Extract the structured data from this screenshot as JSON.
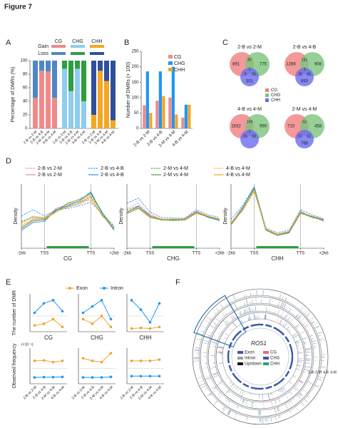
{
  "title": "Figure 7",
  "panel_labels": [
    "A",
    "B",
    "C",
    "D",
    "E",
    "F"
  ],
  "chart_data": [
    {
      "type": "stacked-bar",
      "ylabel": "Percentage of DMRs (%)",
      "ylim": [
        0,
        100
      ],
      "yticks": [
        0,
        20,
        40,
        60,
        80,
        100
      ],
      "legend_rows": [
        "Gain",
        "Loss"
      ],
      "categories": [
        "2-B vs 2-M",
        "2-B vs 4-B",
        "2-M vs 4-M",
        "4-B vs 4-M"
      ],
      "groups": [
        {
          "name": "CG",
          "series": [
            {
              "color": "#f08a8a",
              "values": [
                45,
                85,
                84,
                45
              ]
            },
            {
              "color": "#4f86c6",
              "values": [
                55,
                15,
                16,
                55
              ]
            }
          ]
        },
        {
          "name": "CHG",
          "series": [
            {
              "color": "#8ecdf0",
              "values": [
                88,
                55,
                88,
                40
              ]
            },
            {
              "color": "#2e9e3e",
              "values": [
                12,
                45,
                12,
                60
              ]
            }
          ]
        },
        {
          "name": "CHH",
          "series": [
            {
              "color": "#f5a623",
              "values": [
                20,
                85,
                70,
                12
              ]
            },
            {
              "color": "#2f4fa0",
              "values": [
                80,
                15,
                30,
                88
              ]
            }
          ]
        }
      ]
    },
    {
      "type": "bar",
      "ylabel": "Number of DMRs (× 100)",
      "ylim": [
        0,
        250
      ],
      "yticks": [
        0,
        50,
        100,
        150,
        200,
        250
      ],
      "categories": [
        "2-B vs 2-M",
        "2-B vs 4-B",
        "2-M vs 4-M",
        "4-B vs 4-M"
      ],
      "series": [
        {
          "name": "CG",
          "color": "#f08a8a",
          "values": [
            75,
            90,
            100,
            35
          ]
        },
        {
          "name": "CHG",
          "color": "#2196f3",
          "values": [
            185,
            185,
            200,
            77
          ]
        },
        {
          "name": "CHH",
          "color": "#f5a623",
          "values": [
            50,
            105,
            45,
            77
          ]
        }
      ]
    },
    {
      "type": "venn",
      "sets": [
        {
          "name": "CG",
          "color": "#f07f7f"
        },
        {
          "name": "CHG",
          "color": "#7cc47c"
        },
        {
          "name": "CHH",
          "color": "#6b6bf0"
        }
      ],
      "diagrams": [
        {
          "title": "2-B vs 2-M",
          "regions": {
            "CG": 891,
            "CHG": 775,
            "CG_CHG": 80,
            "all": 1,
            "CG_CHH": 9,
            "CHG_CHH": 25,
            "CHH": 501
          }
        },
        {
          "title": "2-B vs 4-B",
          "regions": {
            "CG": 1288,
            "CHG": 908,
            "CG_CHG": 151,
            "all": 1,
            "CG_CHH": 35,
            "CHG_CHH": 65,
            "CHH": 893
          }
        },
        {
          "title": "4-B vs 4-M",
          "regions": {
            "CG": 1632,
            "CHG": 990,
            "CG_CHG": 159,
            "all": 1,
            "CG_CHH": 15,
            "CHG_CHH": 18
          }
        },
        {
          "title": "2-M vs 4-M",
          "regions": {
            "CG": 710,
            "CHG": 458,
            "CG_CHG": 53,
            "CG_CHH": 17,
            "CHG_CHH": 12,
            "CHH": 768
          }
        }
      ]
    },
    {
      "type": "line",
      "ylabel": "Density",
      "x": [
        0,
        1,
        2,
        3,
        4,
        5,
        6,
        7,
        8
      ],
      "xlim": [
        0,
        8
      ],
      "ylim": [
        0,
        1
      ],
      "xticks": [
        {
          "value": 0,
          "label": "-2kb"
        },
        {
          "value": 2,
          "label": "TSS"
        },
        {
          "value": 6,
          "label": "TTS"
        },
        {
          "value": 8,
          "label": "+2kb"
        }
      ],
      "series": [
        {
          "name": "2-B vs 2-M",
          "color": "#f08a8a",
          "dash": true
        },
        {
          "name": "2-B vs 4-B",
          "color": "#2196f3",
          "dash": true
        },
        {
          "name": "2-M vs 4-M",
          "color": "#43a047",
          "dash": true
        },
        {
          "name": "4-B vs 4-M",
          "color": "#f5a623",
          "dash": true
        },
        {
          "name": "2-B vs 2-M",
          "color": "#f08a8a",
          "dash": false
        },
        {
          "name": "2-B vs 4-B",
          "color": "#2196f3",
          "dash": false
        },
        {
          "name": "2-M vs 4-M",
          "color": "#43a047",
          "dash": false
        },
        {
          "name": "4-B vs 4-M",
          "color": "#f5a623",
          "dash": false
        }
      ],
      "subplots": [
        {
          "xlabel": "CG",
          "values": [
            [
              0.4,
              0.5,
              0.45,
              0.62,
              0.66,
              0.68,
              0.78,
              0.5,
              0.32
            ],
            [
              0.5,
              0.6,
              0.5,
              0.6,
              0.62,
              0.66,
              0.72,
              0.52,
              0.35
            ],
            [
              0.42,
              0.48,
              0.47,
              0.6,
              0.64,
              0.7,
              0.82,
              0.55,
              0.33
            ],
            [
              0.38,
              0.5,
              0.48,
              0.58,
              0.7,
              0.72,
              0.75,
              0.5,
              0.3
            ],
            [
              0.3,
              0.42,
              0.45,
              0.62,
              0.68,
              0.72,
              0.85,
              0.55,
              0.3
            ],
            [
              0.28,
              0.4,
              0.42,
              0.6,
              0.66,
              0.74,
              0.88,
              0.52,
              0.28
            ],
            [
              0.32,
              0.44,
              0.44,
              0.58,
              0.7,
              0.76,
              0.86,
              0.55,
              0.3
            ],
            [
              0.35,
              0.46,
              0.46,
              0.56,
              0.65,
              0.7,
              0.8,
              0.5,
              0.32
            ]
          ]
        },
        {
          "xlabel": "CHG",
          "values": [
            [
              0.62,
              0.7,
              0.52,
              0.46,
              0.45,
              0.46,
              0.56,
              0.5,
              0.46
            ],
            [
              0.7,
              0.78,
              0.56,
              0.48,
              0.47,
              0.47,
              0.6,
              0.52,
              0.48
            ],
            [
              0.6,
              0.66,
              0.5,
              0.45,
              0.44,
              0.45,
              0.55,
              0.5,
              0.45
            ],
            [
              0.58,
              0.64,
              0.5,
              0.44,
              0.46,
              0.44,
              0.54,
              0.49,
              0.44
            ],
            [
              0.55,
              0.65,
              0.52,
              0.45,
              0.44,
              0.46,
              0.58,
              0.5,
              0.44
            ],
            [
              0.56,
              0.66,
              0.5,
              0.44,
              0.45,
              0.45,
              0.57,
              0.48,
              0.43
            ],
            [
              0.54,
              0.62,
              0.48,
              0.44,
              0.43,
              0.44,
              0.55,
              0.49,
              0.44
            ],
            [
              0.57,
              0.63,
              0.49,
              0.45,
              0.44,
              0.45,
              0.56,
              0.5,
              0.45
            ]
          ]
        },
        {
          "xlabel": "CHH",
          "values": [
            [
              0.4,
              0.62,
              0.92,
              0.3,
              0.22,
              0.26,
              0.56,
              0.5,
              0.44
            ],
            [
              0.45,
              0.66,
              0.96,
              0.32,
              0.24,
              0.28,
              0.6,
              0.52,
              0.46
            ],
            [
              0.38,
              0.6,
              0.9,
              0.28,
              0.2,
              0.25,
              0.55,
              0.5,
              0.43
            ],
            [
              0.4,
              0.58,
              0.88,
              0.3,
              0.22,
              0.26,
              0.58,
              0.48,
              0.44
            ],
            [
              0.36,
              0.6,
              0.94,
              0.28,
              0.2,
              0.24,
              0.54,
              0.5,
              0.42
            ],
            [
              0.38,
              0.64,
              0.95,
              0.3,
              0.21,
              0.25,
              0.57,
              0.49,
              0.43
            ],
            [
              0.37,
              0.61,
              0.93,
              0.29,
              0.2,
              0.24,
              0.55,
              0.48,
              0.44
            ],
            [
              0.39,
              0.62,
              0.91,
              0.3,
              0.21,
              0.26,
              0.56,
              0.5,
              0.45
            ]
          ]
        }
      ]
    },
    {
      "type": "line-grid",
      "categories": [
        "2-B vs 2-M",
        "2-B vs 4-B",
        "2-M vs 4-M",
        "4-B vs 4-M"
      ],
      "series": [
        {
          "name": "Exon",
          "color": "#f5a030"
        },
        {
          "name": "Intron",
          "color": "#2196f3"
        }
      ],
      "xlabels": [
        "CG",
        "CHG",
        "CHH"
      ],
      "rows": [
        {
          "ylabel": "The number of DMR",
          "ylim": [
            0,
            1200
          ],
          "ref_line": 500,
          "panels": [
            {
              "values": [
                [
                  200,
                  250,
                  400,
                  150
                ],
                [
                  600,
                  900,
                  1000,
                  650
                ]
              ]
            },
            {
              "values": [
                [
                  400,
                  250,
                  500,
                  150
                ],
                [
                  600,
                  800,
                  1000,
                  400
                ]
              ]
            },
            {
              "values": [
                [
                  100,
                  120,
                  100,
                  150
                ],
                [
                  1000,
                  700,
                  300,
                  900
                ]
              ]
            }
          ]
        },
        {
          "ylabel": "Observed frequency",
          "scale_label": "(×10⁻⁵)",
          "ylim": [
            0,
            14
          ],
          "ref_line": 6,
          "panels": [
            {
              "values": [
                [
                  9,
                  9.2,
                  8.5,
                  9
                ],
                [
                  2.5,
                  2.6,
                  2.6,
                  2.7
                ]
              ]
            },
            {
              "values": [
                [
                  10,
                  9,
                  8.5,
                  12
                ],
                [
                  2.5,
                  2.5,
                  2.5,
                  2.7
                ]
              ]
            },
            {
              "values": [
                [
                  9,
                  9,
                  9,
                  9.5
                ],
                [
                  3,
                  3,
                  3,
                  3
                ]
              ]
            }
          ]
        }
      ]
    },
    {
      "type": "circos",
      "gene": "ROS1",
      "legend": [
        {
          "name": "Exon",
          "color": "#3b5aa8"
        },
        {
          "name": "Intron",
          "color": "#9e9e9e"
        },
        {
          "name": "Up/down",
          "color": "#111111"
        },
        {
          "name": "CG",
          "color": "#e06c8a"
        },
        {
          "name": "CHG",
          "color": "#3f51b5"
        },
        {
          "name": "CHH",
          "color": "#2e9e7a"
        }
      ],
      "track_labels": [
        "2-B",
        "2-M",
        "4-B",
        "4-M"
      ]
    }
  ]
}
